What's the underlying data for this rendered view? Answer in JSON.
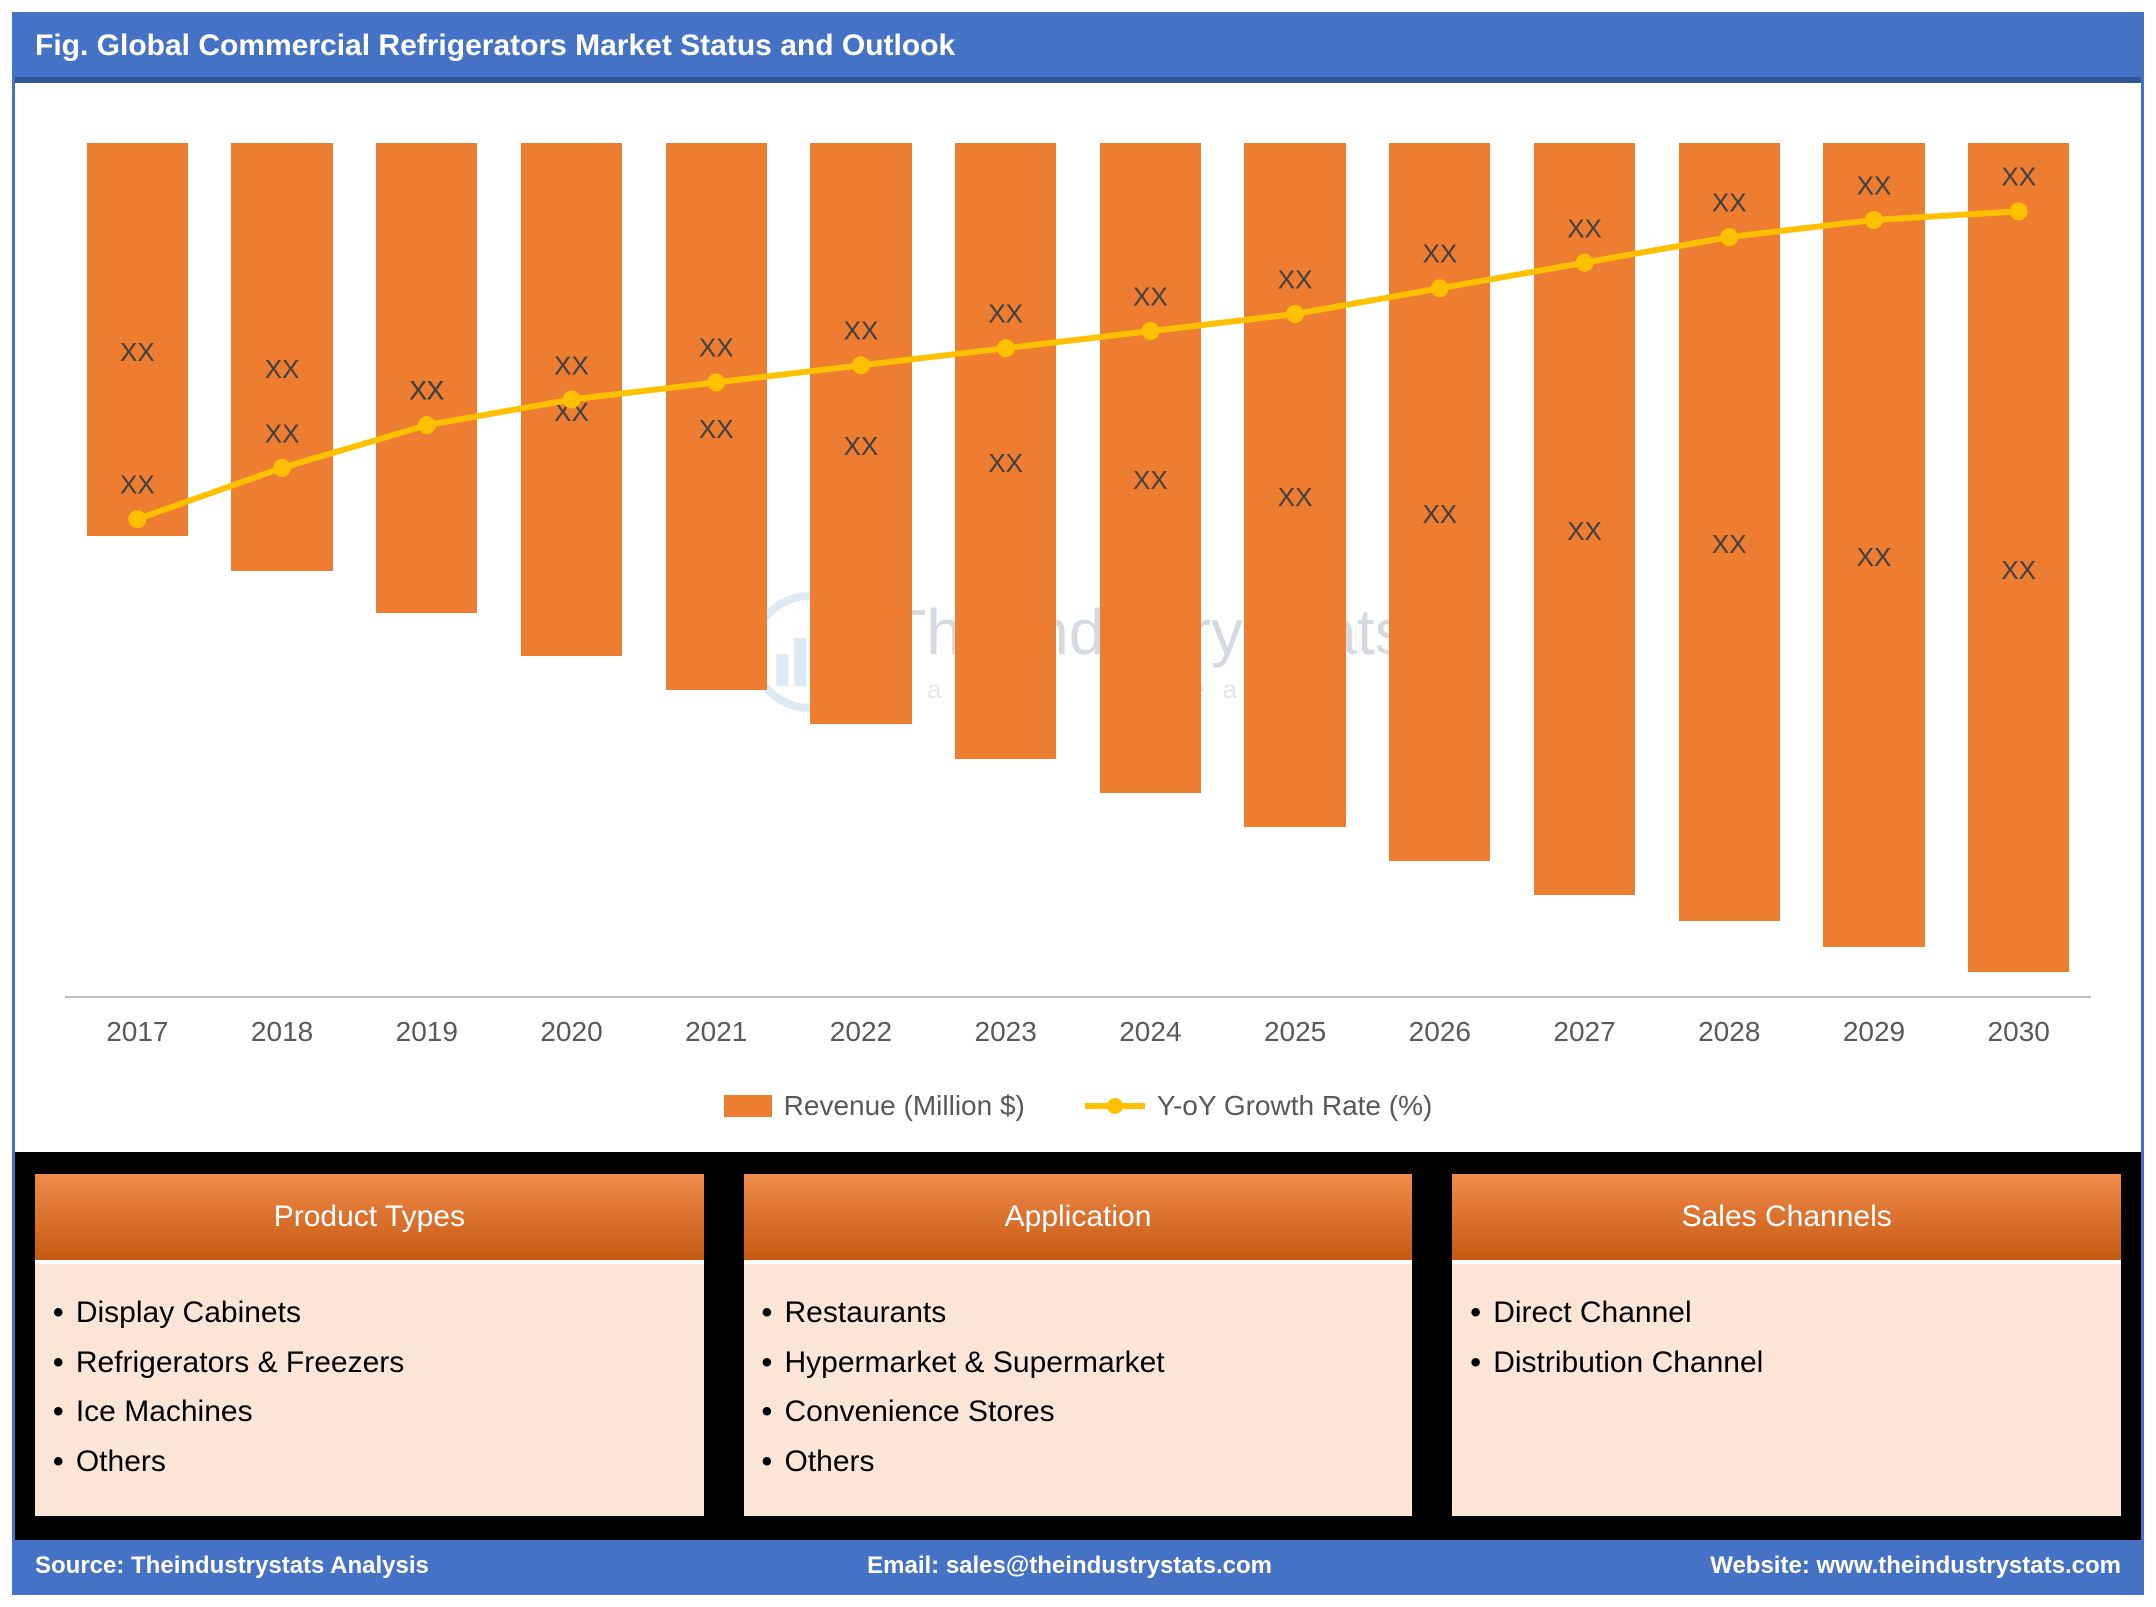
{
  "title": "Fig. Global Commercial Refrigerators Market Status and Outlook",
  "chart": {
    "type": "bar+line",
    "categories": [
      "2017",
      "2018",
      "2019",
      "2020",
      "2021",
      "2022",
      "2023",
      "2024",
      "2025",
      "2026",
      "2027",
      "2028",
      "2029",
      "2030"
    ],
    "bar_values": [
      46,
      50,
      55,
      60,
      64,
      68,
      72,
      76,
      80,
      84,
      88,
      91,
      94,
      97
    ],
    "bar_inner_labels": [
      "XX",
      "XX",
      "XX",
      "XX",
      "XX",
      "XX",
      "XX",
      "XX",
      "XX",
      "XX",
      "XX",
      "XX",
      "XX",
      "XX"
    ],
    "bar_color": "#ed7d31",
    "bar_width_pct": 70,
    "line_values": [
      56,
      62,
      67,
      70,
      72,
      74,
      76,
      78,
      80,
      83,
      86,
      89,
      91,
      92
    ],
    "line_point_labels": [
      "XX",
      "XX",
      "XX",
      "XX",
      "XX",
      "XX",
      "XX",
      "XX",
      "XX",
      "XX",
      "XX",
      "XX",
      "XX",
      "XX"
    ],
    "line_color": "#ffc000",
    "line_width": 6,
    "marker_radius": 9,
    "ylim": [
      0,
      100
    ],
    "baseline_color": "#bfbfbf",
    "background_color": "#ffffff",
    "axis_label_color": "#595959",
    "axis_fontsize": 28,
    "value_label_color": "#404040",
    "value_label_fontsize": 26
  },
  "legend": {
    "items": [
      {
        "type": "bar",
        "label": "Revenue (Million $)",
        "color": "#ed7d31"
      },
      {
        "type": "line",
        "label": "Y-oY Growth Rate (%)",
        "color": "#ffc000"
      }
    ],
    "fontsize": 28,
    "text_color": "#595959"
  },
  "watermark": {
    "main": "The Industry Stats",
    "sub": "market research",
    "opacity": 0.2
  },
  "panels": {
    "header_bg_top": "#f08b4b",
    "header_bg_bottom": "#c55a11",
    "body_bg": "#fbe5d6",
    "header_fontsize": 30,
    "body_fontsize": 30,
    "items": [
      {
        "title": "Product Types",
        "list": [
          "Display Cabinets",
          "Refrigerators & Freezers",
          "Ice Machines",
          "Others"
        ]
      },
      {
        "title": "Application",
        "list": [
          "Restaurants",
          "Hypermarket & Supermarket",
          "Convenience Stores",
          "Others"
        ]
      },
      {
        "title": "Sales Channels",
        "list": [
          "Direct Channel",
          "Distribution Channel"
        ]
      }
    ]
  },
  "footer": {
    "source_label": "Source: Theindustrystats Analysis",
    "email_label": "Email: sales@theindustrystats.com",
    "website_label": "Website: www.theindustrystats.com",
    "bg": "#4472c4",
    "fontsize": 24
  },
  "frame": {
    "border_color": "#4472c4",
    "title_bg": "#4472c4",
    "title_underline": "#2f5597"
  }
}
